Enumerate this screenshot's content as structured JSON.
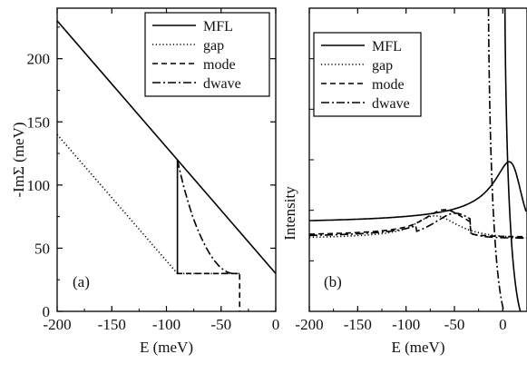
{
  "chart_data": [
    {
      "panel_label": "(a)",
      "type": "line",
      "xlabel": "E (meV)",
      "ylabel": "-ImΣ (meV)",
      "xlim": [
        -200,
        0
      ],
      "ylim": [
        0,
        240
      ],
      "xticks": [
        -200,
        -150,
        -100,
        -50,
        0
      ],
      "xtick_labels": [
        "-200",
        "-150",
        "-100",
        "-50",
        "0"
      ],
      "yticks": [
        0,
        50,
        100,
        150,
        200
      ],
      "ytick_labels": [
        "0",
        "50",
        "100",
        "150",
        "200"
      ],
      "legend": "top-right",
      "series": [
        {
          "name": "MFL",
          "style": "solid",
          "x": [
            -200,
            0
          ],
          "y": [
            230,
            30
          ]
        },
        {
          "name": "gap",
          "style": "dotted",
          "x": [
            -200,
            -90,
            -70,
            -50,
            -40,
            -33
          ],
          "y": [
            140,
            30,
            30,
            30,
            30,
            30
          ]
        },
        {
          "name": "mode",
          "style": "dashed",
          "x": [
            -200,
            -90,
            -90,
            -90,
            -33,
            -33,
            -33
          ],
          "y": [
            null,
            30,
            120,
            30,
            30,
            30,
            0
          ]
        },
        {
          "name": "dwave",
          "style": "dashdot",
          "x": [
            -90,
            -88,
            -84,
            -80,
            -76,
            -72,
            -68,
            -64,
            -60,
            -56,
            -52,
            -48,
            -44,
            -40,
            -36,
            -33
          ],
          "y": [
            120,
            112,
            98,
            86,
            75,
            66,
            58,
            51,
            45,
            40,
            36,
            33,
            31,
            30,
            30,
            30
          ]
        }
      ]
    },
    {
      "panel_label": "(b)",
      "type": "line",
      "xlabel": "E (meV)",
      "ylabel": "Intensity",
      "xlim": [
        -200,
        25
      ],
      "xticks": [
        -200,
        -150,
        -100,
        -50,
        0
      ],
      "xtick_labels": [
        "-200",
        "-150",
        "-100",
        "-50",
        "0"
      ],
      "legend": "top-left",
      "series": [
        {
          "name": "MFL",
          "style": "solid"
        },
        {
          "name": "gap",
          "style": "dotted"
        },
        {
          "name": "mode",
          "style": "dashed"
        },
        {
          "name": "dwave",
          "style": "dashdot"
        }
      ]
    }
  ]
}
